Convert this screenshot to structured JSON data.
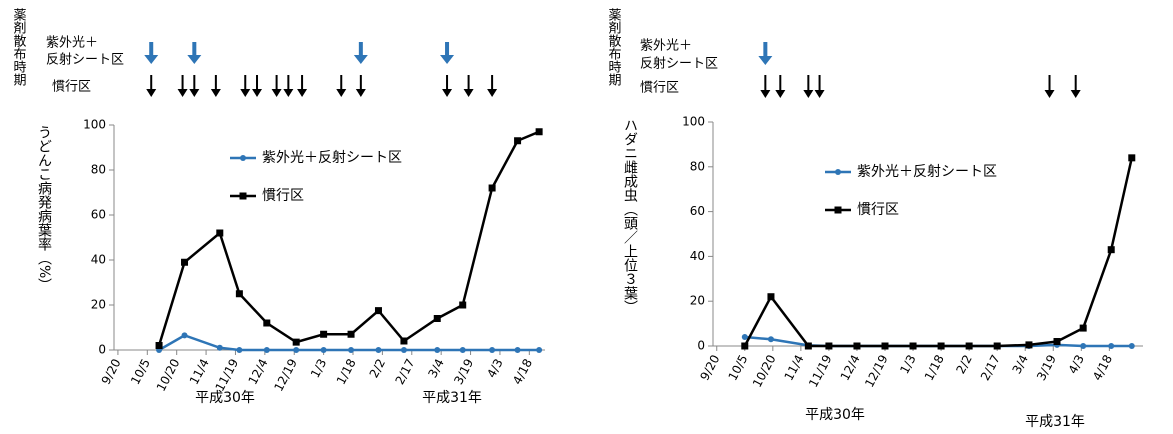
{
  "chart_data": [
    {
      "type": "line",
      "spray_label": "薬剤散布時期",
      "spray": [
        {
          "name_lines": [
            "紫外光＋",
            "反射シート区"
          ],
          "color": "#2e75b6",
          "x": [
            17,
            39,
            124,
            168
          ]
        },
        {
          "name_lines": [
            "慣行区"
          ],
          "color": "#000000",
          "x": [
            17,
            33,
            39,
            50,
            65,
            71,
            81,
            87,
            94,
            114,
            124,
            168,
            179,
            191
          ]
        }
      ],
      "y_label": "うどんこ病発病葉率（%）",
      "x": [
        21,
        34,
        52,
        62,
        76,
        91,
        105,
        119,
        133,
        146,
        163,
        176,
        191,
        204,
        215
      ],
      "xlim": [
        -2,
        218
      ],
      "xticks": [
        {
          "value": 0,
          "label": "9/20"
        },
        {
          "value": 15,
          "label": "10/5"
        },
        {
          "value": 30,
          "label": "10/20"
        },
        {
          "value": 45,
          "label": "11/4"
        },
        {
          "value": 60,
          "label": "11/19"
        },
        {
          "value": 75,
          "label": "12/4"
        },
        {
          "value": 90,
          "label": "12/19"
        },
        {
          "value": 105,
          "label": "1/3"
        },
        {
          "value": 120,
          "label": "1/18"
        },
        {
          "value": 135,
          "label": "2/2"
        },
        {
          "value": 150,
          "label": "2/17"
        },
        {
          "value": 165,
          "label": "3/4"
        },
        {
          "value": 180,
          "label": "3/19"
        },
        {
          "value": 195,
          "label": "4/3"
        },
        {
          "value": 210,
          "label": "4/18"
        }
      ],
      "x_group_labels": [
        "平成30年",
        "平成31年"
      ],
      "ylim": [
        0,
        100
      ],
      "yticks": [
        0,
        20,
        40,
        60,
        80,
        100
      ],
      "series": [
        {
          "name": "紫外光＋反射シート区",
          "color": "#2e75b6",
          "marker": "circle",
          "values": [
            0,
            6.5,
            1,
            0,
            0,
            0,
            0,
            0,
            0,
            0,
            0,
            0,
            0,
            0,
            0
          ]
        },
        {
          "name": "慣行区",
          "color": "#000000",
          "marker": "square",
          "values": [
            2,
            39,
            52,
            25,
            12,
            3.5,
            7,
            7,
            17.5,
            4,
            14,
            20,
            72,
            93,
            97
          ]
        }
      ]
    },
    {
      "type": "line",
      "spray_label": "薬剤散布時期",
      "spray": [
        {
          "name_lines": [
            "紫外光＋",
            "反射シート区"
          ],
          "color": "#2e75b6",
          "x": [
            26
          ]
        },
        {
          "name_lines": [
            "慣行区"
          ],
          "color": "#000000",
          "x": [
            26,
            34,
            49,
            55,
            178,
            192
          ]
        }
      ],
      "y_label": "ハダニ雌成虫（頭／上位３葉）",
      "x": [
        15,
        29,
        49,
        60,
        75,
        90,
        105,
        120,
        135,
        150,
        167,
        182,
        196,
        211,
        222
      ],
      "xlim": [
        -2,
        228
      ],
      "xticks": [
        {
          "value": 0,
          "label": "9/20"
        },
        {
          "value": 15,
          "label": "10/5"
        },
        {
          "value": 30,
          "label": "10/20"
        },
        {
          "value": 45,
          "label": "11/4"
        },
        {
          "value": 60,
          "label": "11/19"
        },
        {
          "value": 75,
          "label": "12/4"
        },
        {
          "value": 90,
          "label": "12/19"
        },
        {
          "value": 105,
          "label": "1/3"
        },
        {
          "value": 120,
          "label": "1/18"
        },
        {
          "value": 135,
          "label": "2/2"
        },
        {
          "value": 150,
          "label": "2/17"
        },
        {
          "value": 165,
          "label": "3/4"
        },
        {
          "value": 180,
          "label": "3/19"
        },
        {
          "value": 195,
          "label": "4/3"
        },
        {
          "value": 210,
          "label": "4/18"
        }
      ],
      "x_group_labels": [
        "平成30年",
        "平成31年"
      ],
      "ylim": [
        0,
        100
      ],
      "yticks": [
        0,
        20,
        40,
        60,
        80,
        100
      ],
      "series": [
        {
          "name": "紫外光＋反射シート区",
          "color": "#2e75b6",
          "marker": "circle",
          "values": [
            4,
            3,
            0.3,
            0,
            0,
            0,
            0,
            0,
            0,
            0,
            0,
            0.5,
            0,
            0,
            0
          ]
        },
        {
          "name": "慣行区",
          "color": "#000000",
          "marker": "square",
          "values": [
            0,
            22,
            0,
            0,
            0,
            0,
            0,
            0,
            0,
            0,
            0.5,
            2,
            8,
            43,
            84
          ]
        }
      ]
    }
  ]
}
